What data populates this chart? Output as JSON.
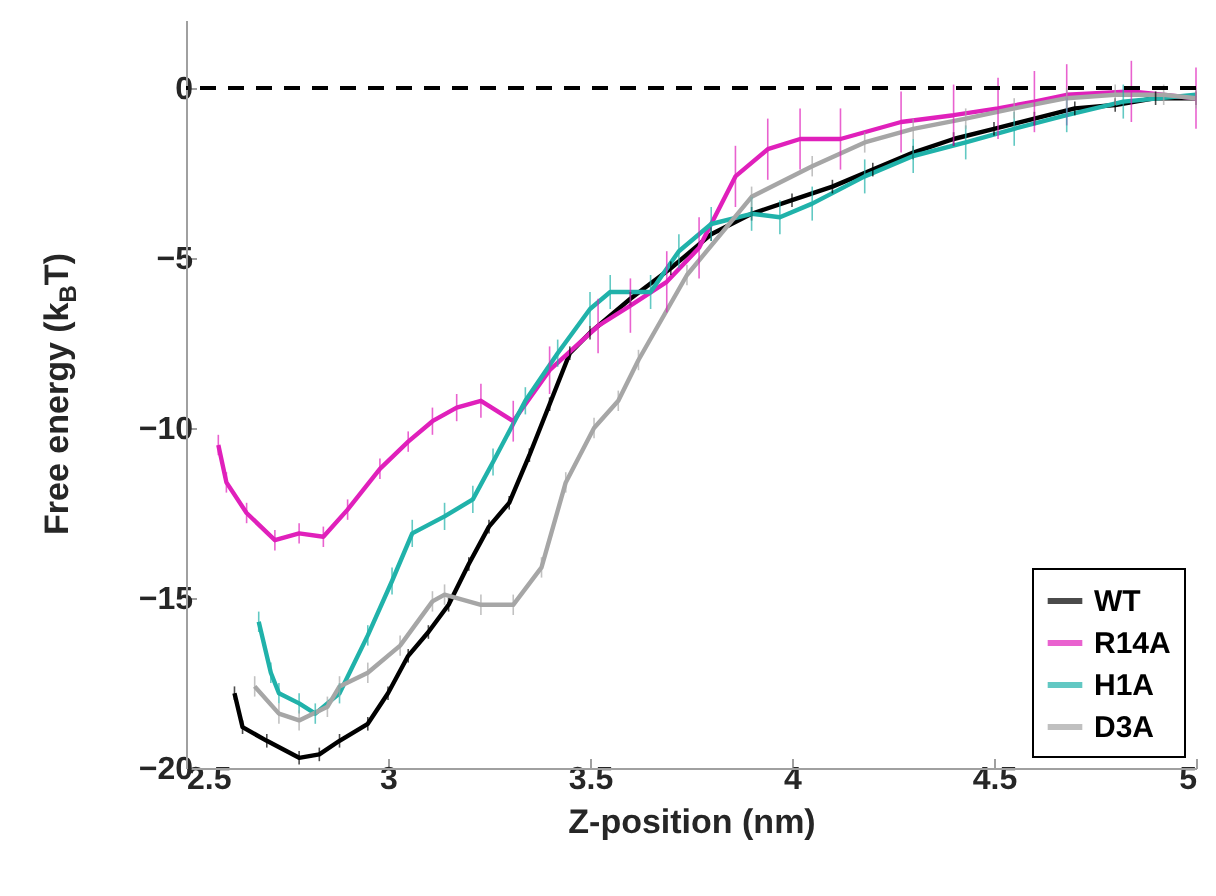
{
  "chart_data": {
    "type": "line",
    "xlabel": "Z-position (nm)",
    "ylabel": "Free energy (k$_{B}$T)",
    "xlim": [
      2.5,
      5
    ],
    "xticks": [
      2.5,
      3,
      3.5,
      4,
      4.5,
      5
    ],
    "ylim": [
      -20,
      2
    ],
    "yticks": [
      -20,
      -15,
      -10,
      -5,
      0
    ],
    "grid": false,
    "legend": "bottom right",
    "line_style": "solid",
    "marker": "none",
    "ref_lines": [
      {
        "axis": "y",
        "value": 0,
        "color": "#000000",
        "line_style": "dashed"
      }
    ],
    "series": [
      {
        "name": "WT",
        "color": "#000000",
        "x": [
          2.62,
          2.64,
          2.7,
          2.78,
          2.83,
          2.88,
          2.95,
          3.0,
          3.05,
          3.1,
          3.15,
          3.2,
          3.25,
          3.3,
          3.35,
          3.4,
          3.45,
          3.5,
          3.6,
          3.7,
          3.8,
          3.9,
          4.0,
          4.1,
          4.2,
          4.3,
          4.4,
          4.5,
          4.6,
          4.7,
          4.8,
          4.9,
          5.0
        ],
        "values": [
          -17.8,
          -18.8,
          -19.2,
          -19.7,
          -19.6,
          -19.2,
          -18.7,
          -17.8,
          -16.7,
          -16.0,
          -15.2,
          -14.0,
          -12.9,
          -12.2,
          -10.8,
          -9.3,
          -7.8,
          -7.2,
          -6.2,
          -5.3,
          -4.3,
          -3.7,
          -3.3,
          -2.9,
          -2.4,
          -1.9,
          -1.5,
          -1.2,
          -0.9,
          -0.6,
          -0.5,
          -0.3,
          -0.3
        ],
        "errors": [
          0.2,
          0.2,
          0.2,
          0.2,
          0.2,
          0.2,
          0.2,
          0.2,
          0.2,
          0.2,
          0.2,
          0.2,
          0.2,
          0.2,
          0.2,
          0.2,
          0.2,
          0.2,
          0.2,
          0.2,
          0.2,
          0.2,
          0.2,
          0.2,
          0.2,
          0.2,
          0.2,
          0.2,
          0.2,
          0.2,
          0.2,
          0.2,
          0.2
        ]
      },
      {
        "name": "R14A",
        "color": "#e020bb",
        "x": [
          2.58,
          2.6,
          2.65,
          2.72,
          2.78,
          2.84,
          2.9,
          2.98,
          3.05,
          3.11,
          3.17,
          3.23,
          3.31,
          3.4,
          3.52,
          3.6,
          3.69,
          3.77,
          3.86,
          3.94,
          4.02,
          4.12,
          4.27,
          4.4,
          4.51,
          4.6,
          4.68,
          4.84,
          5.0
        ],
        "values": [
          -10.5,
          -11.6,
          -12.5,
          -13.3,
          -13.1,
          -13.2,
          -12.4,
          -11.2,
          -10.4,
          -9.8,
          -9.4,
          -9.2,
          -9.8,
          -8.3,
          -7.0,
          -6.4,
          -5.7,
          -4.7,
          -2.6,
          -1.8,
          -1.5,
          -1.5,
          -1.0,
          -0.8,
          -0.6,
          -0.4,
          -0.2,
          -0.1,
          -0.3
        ],
        "errors": [
          0.3,
          0.3,
          0.3,
          0.3,
          0.3,
          0.3,
          0.3,
          0.3,
          0.3,
          0.4,
          0.4,
          0.5,
          0.6,
          0.7,
          0.8,
          0.8,
          0.9,
          0.9,
          0.9,
          0.9,
          0.9,
          0.9,
          0.9,
          0.9,
          0.9,
          0.9,
          0.9,
          0.9,
          0.9
        ]
      },
      {
        "name": "H1A",
        "color": "#20b2aa",
        "x": [
          2.68,
          2.71,
          2.73,
          2.78,
          2.82,
          2.88,
          2.95,
          3.01,
          3.06,
          3.14,
          3.21,
          3.26,
          3.34,
          3.42,
          3.5,
          3.55,
          3.65,
          3.72,
          3.8,
          3.9,
          3.97,
          4.05,
          4.18,
          4.3,
          4.43,
          4.55,
          4.68,
          4.82,
          5.0
        ],
        "values": [
          -15.7,
          -17.2,
          -17.8,
          -18.1,
          -18.4,
          -17.8,
          -16.1,
          -14.5,
          -13.1,
          -12.6,
          -12.1,
          -11.0,
          -9.2,
          -7.8,
          -6.5,
          -6.0,
          -6.0,
          -4.8,
          -4.0,
          -3.7,
          -3.8,
          -3.4,
          -2.6,
          -2.0,
          -1.6,
          -1.2,
          -0.8,
          -0.4,
          -0.2
        ],
        "errors": [
          0.3,
          0.3,
          0.3,
          0.3,
          0.3,
          0.3,
          0.3,
          0.4,
          0.4,
          0.4,
          0.4,
          0.4,
          0.4,
          0.4,
          0.5,
          0.5,
          0.5,
          0.5,
          0.5,
          0.5,
          0.5,
          0.5,
          0.5,
          0.5,
          0.5,
          0.5,
          0.5,
          0.5,
          null
        ]
      },
      {
        "name": "D3A",
        "color": "#a6a6a6",
        "x": [
          2.67,
          2.73,
          2.78,
          2.85,
          2.88,
          2.95,
          3.03,
          3.11,
          3.14,
          3.23,
          3.31,
          3.38,
          3.44,
          3.51,
          3.57,
          3.62,
          3.74,
          3.9,
          4.05,
          4.18,
          4.3,
          4.43,
          4.55,
          4.68,
          4.8,
          4.92,
          5.0
        ],
        "values": [
          -17.6,
          -18.4,
          -18.6,
          -18.2,
          -17.6,
          -17.2,
          -16.4,
          -15.1,
          -14.9,
          -15.2,
          -15.2,
          -14.1,
          -11.6,
          -10.0,
          -9.2,
          -8.0,
          -5.5,
          -3.2,
          -2.3,
          -1.6,
          -1.2,
          -0.9,
          -0.6,
          -0.3,
          -0.2,
          -0.2,
          -0.3
        ],
        "errors": [
          0.3,
          0.3,
          0.3,
          0.3,
          0.3,
          0.3,
          0.3,
          0.3,
          0.3,
          0.3,
          0.3,
          0.3,
          0.3,
          0.3,
          0.3,
          0.3,
          0.3,
          0.3,
          0.3,
          0.3,
          0.3,
          0.3,
          0.3,
          0.3,
          0.3,
          0.3,
          0.3
        ]
      }
    ]
  }
}
